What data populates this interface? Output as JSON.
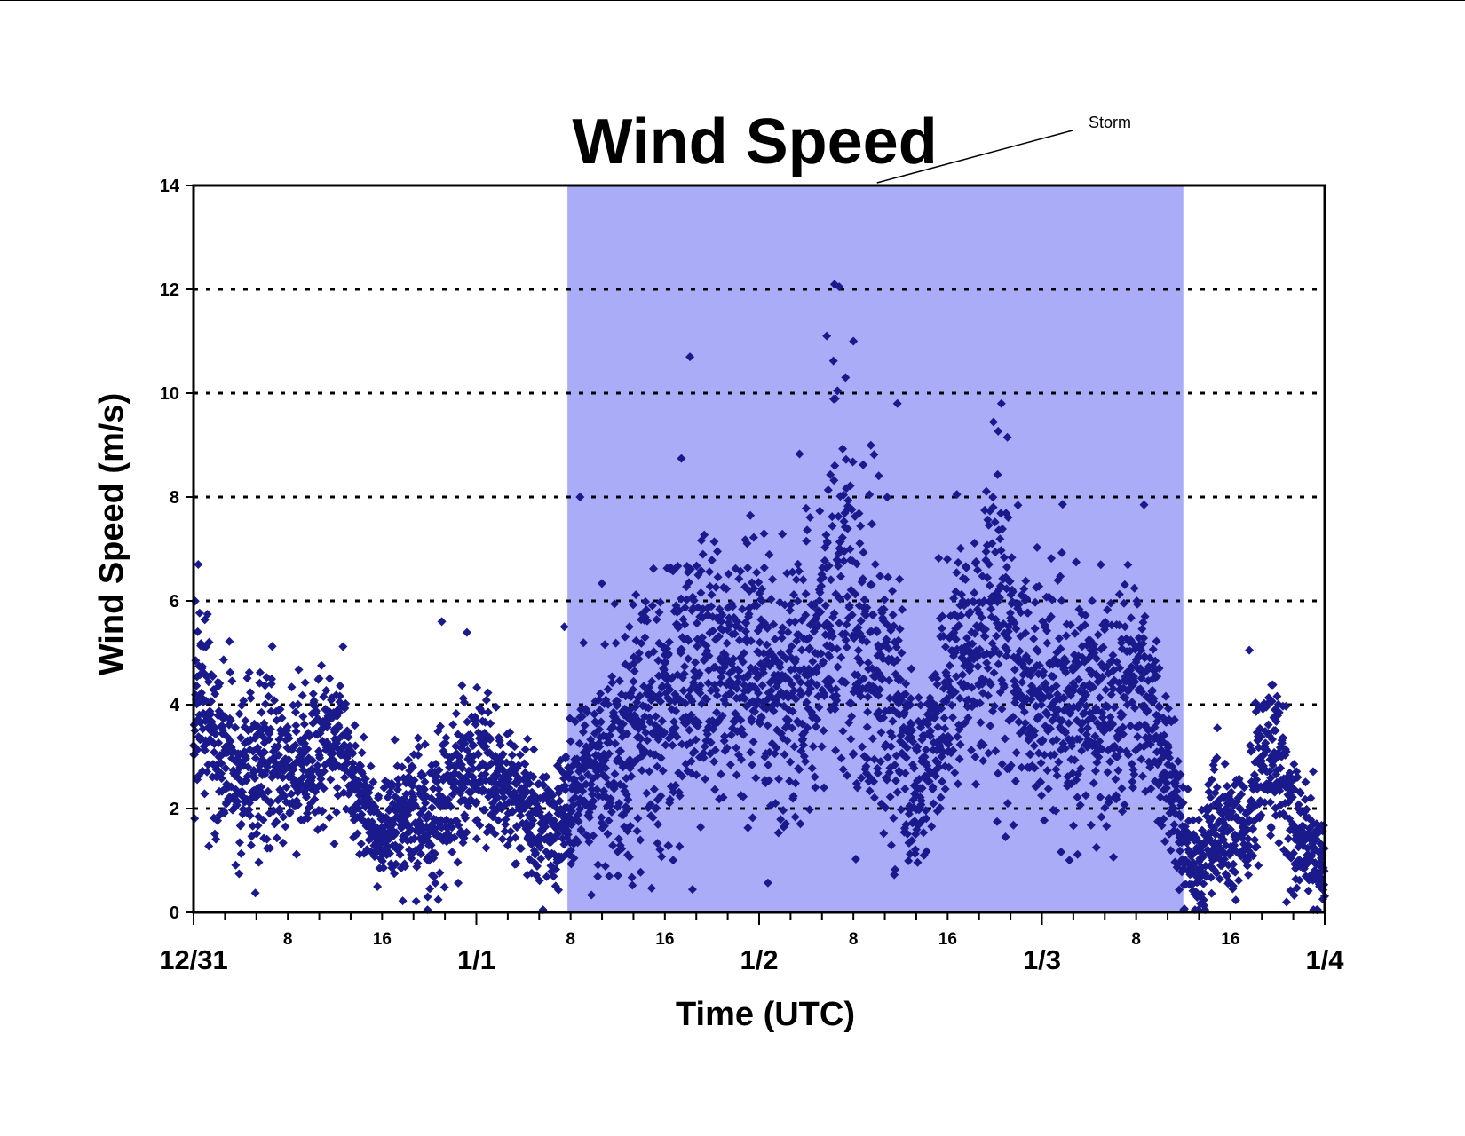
{
  "chart_data": {
    "type": "scatter",
    "title": "Wind Speed",
    "xlabel": "Time (UTC)",
    "ylabel": "Wind Speed (m/s)",
    "x_unit": "hours",
    "xlim": [
      0,
      72
    ],
    "ylim": [
      0,
      14
    ],
    "y_ticks": [
      0,
      2,
      4,
      6,
      8,
      10,
      12,
      14
    ],
    "y_grid": [
      2,
      4,
      6,
      8,
      10,
      12
    ],
    "grid": "dotted horizontal",
    "legend": "none",
    "x_date_ticks": [
      {
        "label": "12/31",
        "hour": 0
      },
      {
        "label": "1/1",
        "hour": 18
      },
      {
        "label": "1/2",
        "hour": 36
      },
      {
        "label": "1/3",
        "hour": 54
      },
      {
        "label": "1/4",
        "hour": 72
      }
    ],
    "x_hour_ticks": [
      {
        "label": "8",
        "hour": 6
      },
      {
        "label": "16",
        "hour": 12
      },
      {
        "label": "8",
        "hour": 24
      },
      {
        "label": "16",
        "hour": 30
      },
      {
        "label": "8",
        "hour": 42
      },
      {
        "label": "16",
        "hour": 48
      },
      {
        "label": "8",
        "hour": 60
      },
      {
        "label": "16",
        "hour": 66
      }
    ],
    "storm_period": {
      "label": "Storm",
      "x_start": 23.8,
      "x_end": 63.0,
      "color": "#aaacf8"
    },
    "series": [
      {
        "color": "#1a1a8c",
        "marker": "diamond",
        "profile_x": [
          0,
          0.3,
          2,
          4,
          6,
          8,
          9.5,
          10,
          11,
          12,
          13,
          14,
          15,
          16,
          17,
          18,
          19,
          20,
          21,
          22,
          23,
          23.8,
          26,
          28,
          30,
          32,
          34,
          36,
          38,
          40,
          41,
          42,
          44,
          45,
          46,
          48,
          50,
          51,
          52,
          54,
          56,
          58,
          60,
          61,
          62,
          63,
          64,
          65,
          66,
          67,
          68,
          69,
          70,
          71,
          72
        ],
        "profile_y": [
          3.2,
          4.0,
          2.8,
          2.7,
          2.9,
          3.0,
          3.5,
          2.6,
          2.0,
          1.5,
          1.7,
          2.0,
          1.5,
          2.2,
          2.6,
          2.9,
          2.6,
          2.3,
          2.0,
          1.7,
          1.7,
          2.0,
          3.0,
          3.6,
          4.0,
          4.6,
          4.6,
          4.2,
          4.4,
          5.0,
          6.8,
          5.0,
          4.8,
          3.4,
          2.2,
          4.5,
          5.2,
          5.8,
          5.0,
          4.1,
          3.8,
          4.0,
          4.6,
          3.8,
          2.8,
          1.4,
          0.8,
          1.6,
          1.4,
          1.5,
          2.9,
          3.0,
          1.8,
          1.2,
          0.9
        ],
        "profile_spread": [
          0.9,
          1.0,
          0.8,
          0.7,
          0.7,
          0.8,
          0.6,
          0.5,
          0.5,
          0.5,
          0.6,
          0.6,
          0.7,
          0.7,
          0.8,
          0.7,
          0.6,
          0.6,
          0.6,
          0.5,
          0.6,
          0.7,
          1.0,
          1.2,
          1.3,
          1.3,
          1.3,
          1.2,
          1.3,
          1.5,
          1.8,
          1.5,
          1.4,
          1.1,
          0.8,
          1.3,
          1.4,
          1.5,
          1.4,
          1.1,
          1.0,
          1.1,
          1.1,
          0.9,
          0.7,
          0.5,
          0.5,
          0.6,
          0.6,
          0.6,
          0.8,
          0.8,
          0.6,
          0.5,
          0.5
        ],
        "notable_points": [
          {
            "x": 0.3,
            "y": 6.7
          },
          {
            "x": 15.8,
            "y": 5.6
          },
          {
            "x": 23.6,
            "y": 5.5
          },
          {
            "x": 24.6,
            "y": 8.0
          },
          {
            "x": 31.6,
            "y": 10.7
          },
          {
            "x": 40.8,
            "y": 12.1
          },
          {
            "x": 41.1,
            "y": 12.05
          },
          {
            "x": 40.3,
            "y": 11.1
          },
          {
            "x": 42.0,
            "y": 11.0
          },
          {
            "x": 41.5,
            "y": 10.3
          },
          {
            "x": 44.8,
            "y": 9.8
          },
          {
            "x": 51.8,
            "y": 9.15
          },
          {
            "x": 60.5,
            "y": 7.85
          },
          {
            "x": 67.2,
            "y": 5.05
          }
        ]
      }
    ]
  }
}
